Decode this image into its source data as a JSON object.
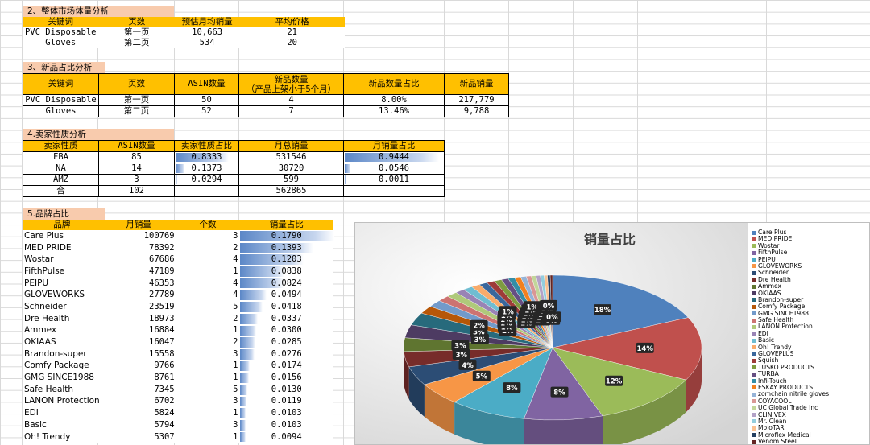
{
  "section2": {
    "title": "2、整体市场体量分析",
    "headers": [
      "关键词",
      "页数",
      "预估月均销量",
      "平均价格"
    ],
    "rows": [
      [
        "PVC Disposable",
        "第一页",
        "10,663",
        "21"
      ],
      [
        "Gloves",
        "第二页",
        "534",
        "20"
      ]
    ]
  },
  "section3": {
    "title": "3、新品占比分析",
    "headers": [
      "关键词",
      "页数",
      "ASIN数量",
      "新品数量",
      "新品数量占比",
      "新品销量"
    ],
    "header_sub": "（产品上架小于5个月）",
    "rows": [
      [
        "PVC Disposable",
        "第一页",
        "50",
        "4",
        "8.00%",
        "217,779"
      ],
      [
        "Gloves",
        "第二页",
        "52",
        "7",
        "13.46%",
        "9,788"
      ]
    ]
  },
  "section4": {
    "title": "4.卖家性质分析",
    "headers": [
      "卖家性质",
      "ASIN数量",
      "卖家性质占比",
      "月总销量",
      "月销量占比"
    ],
    "rows": [
      {
        "type": "FBA",
        "asin": "85",
        "share": "0.8333",
        "share_v": 0.8333,
        "sales": "531546",
        "sales_share": "0.9444",
        "sales_share_v": 0.9444
      },
      {
        "type": "NA",
        "asin": "14",
        "share": "0.1373",
        "share_v": 0.1373,
        "sales": "30720",
        "sales_share": "0.0546",
        "sales_share_v": 0.0546
      },
      {
        "type": "AMZ",
        "asin": "3",
        "share": "0.0294",
        "share_v": 0.0294,
        "sales": "599",
        "sales_share": "0.0011",
        "sales_share_v": 0.0011
      }
    ],
    "total": {
      "label": "合",
      "asin": "102",
      "sales": "562865"
    }
  },
  "section5": {
    "title": "5.品牌占比",
    "headers": [
      "品牌",
      "月销量",
      "个数",
      "销量占比"
    ],
    "rows": [
      [
        "Care Plus",
        "100769",
        "3",
        "0.1790"
      ],
      [
        "MED PRIDE",
        "78392",
        "2",
        "0.1393"
      ],
      [
        "Wostar",
        "67686",
        "4",
        "0.1203"
      ],
      [
        "FifthPulse",
        "47189",
        "1",
        "0.0838"
      ],
      [
        "PEIPU",
        "46353",
        "4",
        "0.0824"
      ],
      [
        "GLOVEWORKS",
        "27789",
        "4",
        "0.0494"
      ],
      [
        "Schneider",
        "23519",
        "5",
        "0.0418"
      ],
      [
        "Dre Health",
        "18973",
        "2",
        "0.0337"
      ],
      [
        "Ammex",
        "16884",
        "1",
        "0.0300"
      ],
      [
        "OKIAAS",
        "16047",
        "2",
        "0.0285"
      ],
      [
        "Brandon-super",
        "15558",
        "3",
        "0.0276"
      ],
      [
        "Comfy Package",
        "9766",
        "1",
        "0.0174"
      ],
      [
        "GMG SINCE1988",
        "8761",
        "1",
        "0.0156"
      ],
      [
        "Safe Health",
        "7345",
        "5",
        "0.0130"
      ],
      [
        "LANON Protection",
        "6702",
        "3",
        "0.0119"
      ],
      [
        "EDI",
        "5824",
        "1",
        "0.0103"
      ],
      [
        "Basic",
        "5794",
        "3",
        "0.0103"
      ],
      [
        "Oh! Trendy",
        "5307",
        "1",
        "0.0094"
      ]
    ]
  },
  "chart_data": {
    "type": "pie",
    "title": "销量占比",
    "legend_position": "right",
    "categories": [
      "Care Plus",
      "MED PRIDE",
      "Wostar",
      "FifthPulse",
      "PEIPU",
      "GLOVEWORKS",
      "Schneider",
      "Dre Health",
      "Ammex",
      "OKIAAS",
      "Brandon-super",
      "Comfy Package",
      "GMG SINCE1988",
      "Safe Health",
      "LANON Protection",
      "EDI",
      "Basic",
      "Oh! Trendy",
      "GLOVEPLUS",
      "Squish",
      "TUSKO PRODUCTS",
      "TURBA",
      "Infi-Touch",
      "ESKAY PRODUCTS",
      "zomchain nitrile gloves",
      "COYACOOL",
      "UC Global Trade Inc",
      "CLINIVEX",
      "Mr. Clean",
      "MoloTAR",
      "Microflex Medical",
      "Venom Steel"
    ],
    "values": [
      0.179,
      0.1393,
      0.1203,
      0.0838,
      0.0824,
      0.0494,
      0.0418,
      0.0337,
      0.03,
      0.0285,
      0.0276,
      0.0174,
      0.0156,
      0.013,
      0.0119,
      0.0103,
      0.0103,
      0.0094,
      0.009,
      0.0085,
      0.008,
      0.0075,
      0.007,
      0.0065,
      0.006,
      0.0055,
      0.005,
      0.0045,
      0.004,
      0.0035,
      0.003,
      0.0025
    ],
    "data_labels": [
      "18%",
      "14%",
      "12%",
      "8%",
      "8%",
      "5%",
      "4%",
      "3%",
      "3%",
      "3%",
      "3%",
      "2%",
      "2%",
      "1%",
      "1%",
      "1%",
      "1%",
      "1%",
      "1%",
      "1%",
      "1%",
      "1%",
      "1%",
      "1%",
      "1%",
      "1%",
      "1%",
      "0%",
      "0%",
      "0%",
      "0%",
      "0%"
    ],
    "colors": [
      "#4f81bd",
      "#c0504d",
      "#9bbb59",
      "#8064a2",
      "#4bacc6",
      "#f79646",
      "#2c4d75",
      "#772c2a",
      "#5f7530",
      "#4d3b62",
      "#276a7c",
      "#b65708",
      "#729aca",
      "#cd7371",
      "#afc97a",
      "#9983b5",
      "#6fbdd1",
      "#f9ab6b",
      "#3a679c",
      "#9e3b38",
      "#7e9c40",
      "#664f83",
      "#358ea6",
      "#f2801f",
      "#95b3d7",
      "#d99795",
      "#c2d69a",
      "#b3a2c7",
      "#93cddd",
      "#fac090",
      "#254061",
      "#632523"
    ]
  }
}
